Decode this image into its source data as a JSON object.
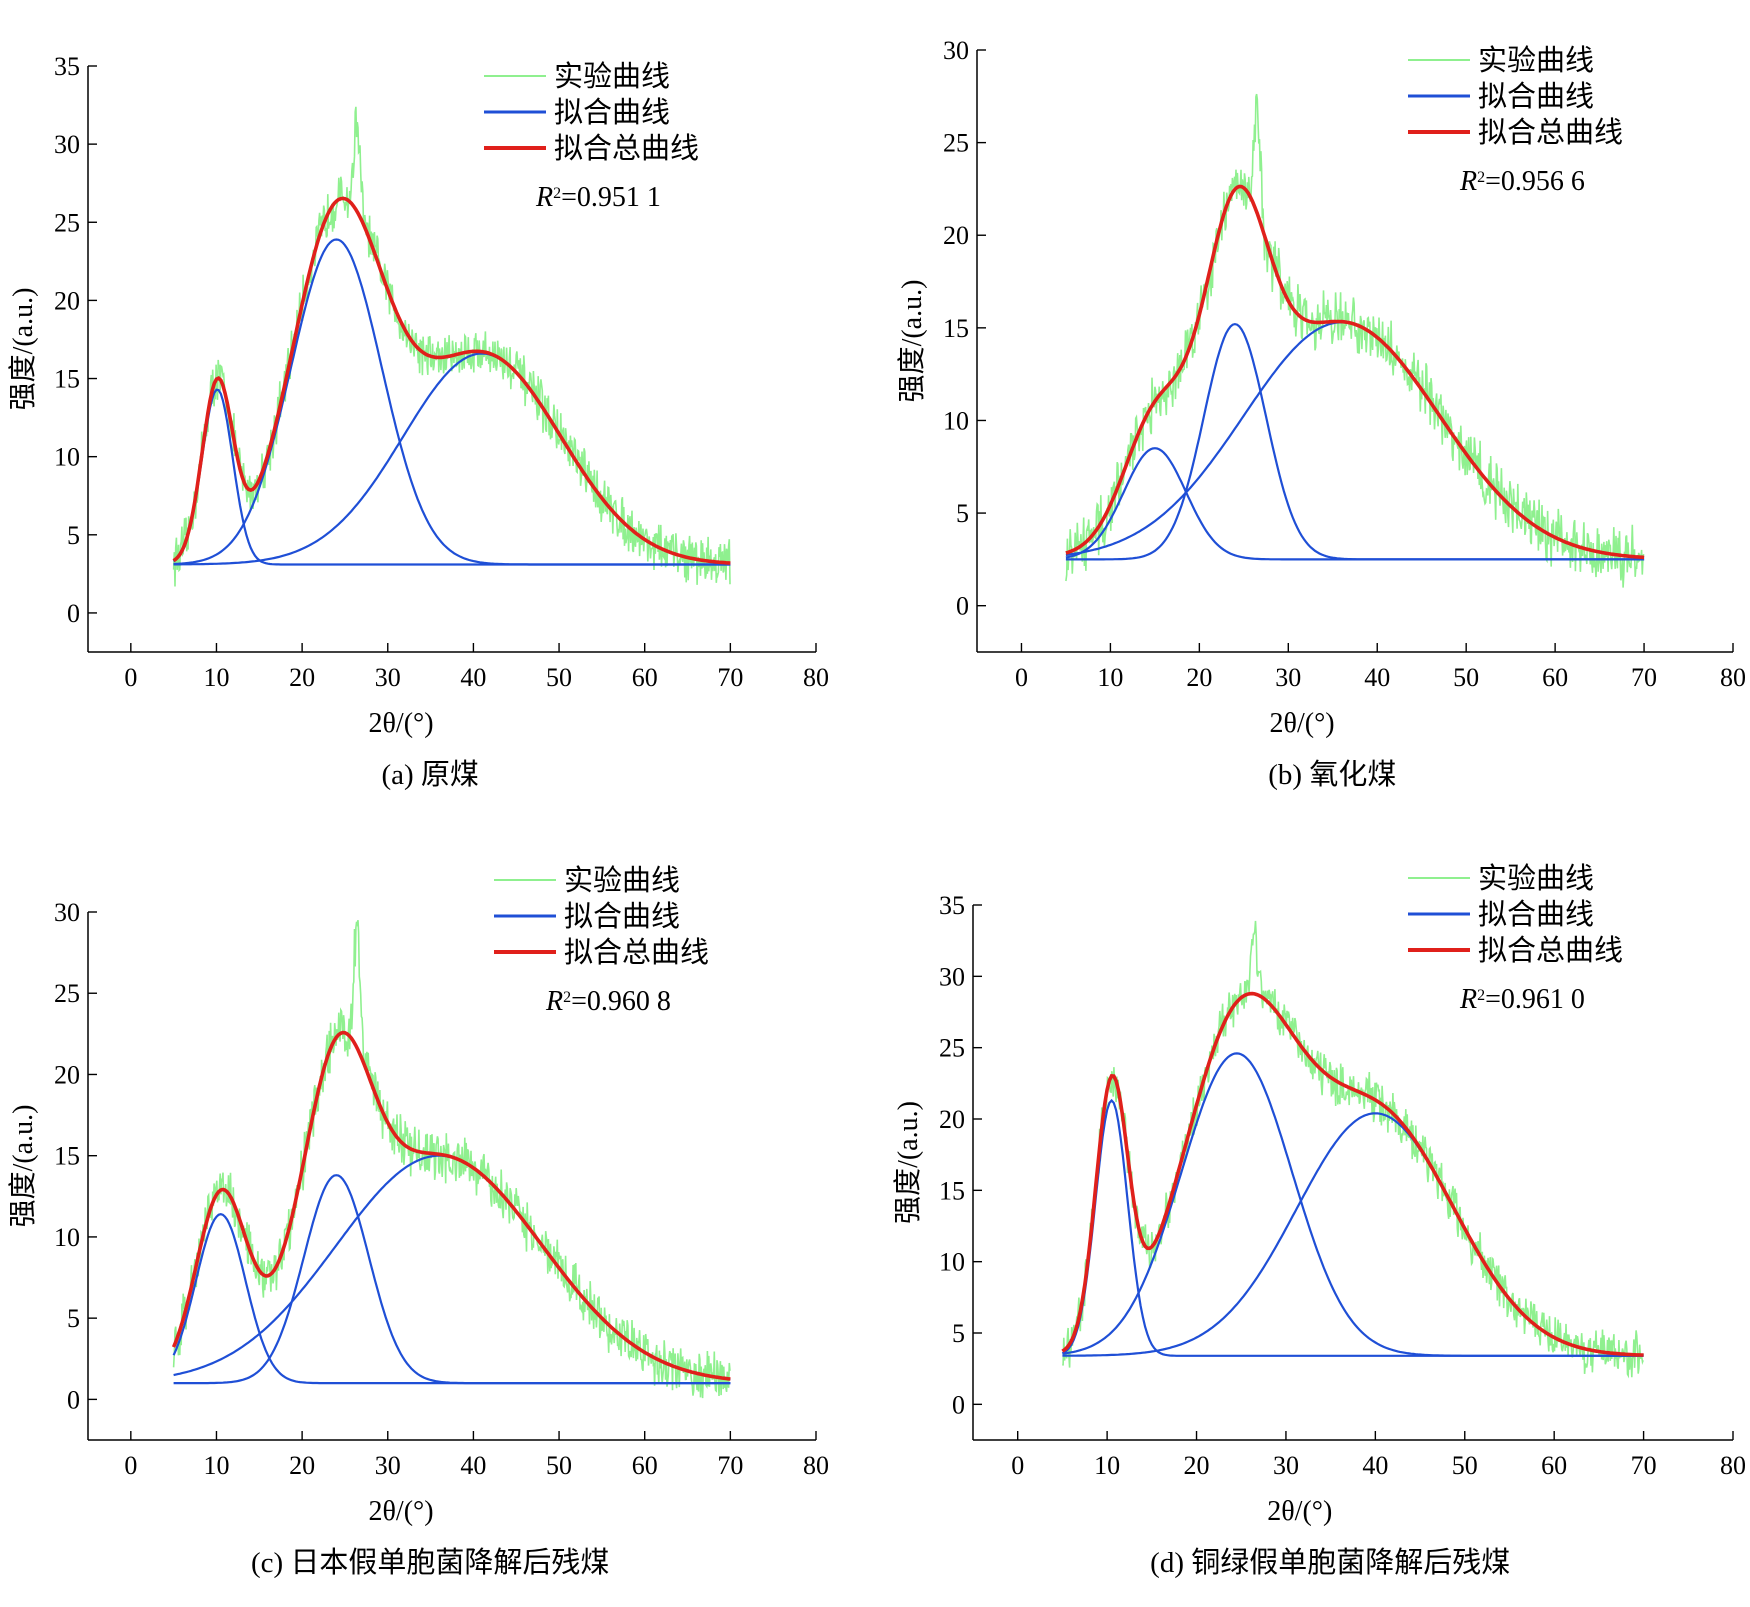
{
  "legend": {
    "experimental": "实验曲线",
    "fit": "拟合曲线",
    "total": "拟合总曲线"
  },
  "colors": {
    "experimental": "#8ff08f",
    "fit": "#1f4fd6",
    "total": "#e0201b"
  },
  "chart_data": [
    {
      "type": "line",
      "caption": "(a) 原煤",
      "xlabel": "2θ/(°)",
      "ylabel": "强度/(a.u.)",
      "xlim": [
        -5,
        80
      ],
      "ylim": [
        -2.5,
        35
      ],
      "xticks": [
        0,
        10,
        20,
        30,
        40,
        50,
        60,
        70,
        80
      ],
      "yticks": [
        0,
        5,
        10,
        15,
        20,
        25,
        30,
        35
      ],
      "r2_symbol": "R",
      "r2_sup": "2",
      "r2_value": "=0.951 1",
      "baseline": 3.1,
      "x_range": [
        5,
        70
      ],
      "peaks": [
        {
          "center": 10.1,
          "height": 11.2,
          "sigma": 1.8
        },
        {
          "center": 24,
          "height": 20.8,
          "sigma": 5.3
        },
        {
          "center": 41,
          "height": 13.5,
          "sigma": 9.2
        }
      ],
      "sharp_peak": {
        "center": 26.4,
        "height": 31.5
      }
    },
    {
      "type": "line",
      "caption": "(b) 氧化煤",
      "xlabel": "2θ/(°)",
      "ylabel": "强度/(a.u.)",
      "xlim": [
        -5,
        80
      ],
      "ylim": [
        -2.5,
        30
      ],
      "xticks": [
        0,
        10,
        20,
        30,
        40,
        50,
        60,
        70,
        80
      ],
      "yticks": [
        0,
        5,
        10,
        15,
        20,
        25,
        30
      ],
      "r2_symbol": "R",
      "r2_sup": "2",
      "r2_value": "=0.956 6",
      "baseline": 2.5,
      "x_range": [
        5,
        70
      ],
      "peaks": [
        {
          "center": 15,
          "height": 6.0,
          "sigma": 3.5
        },
        {
          "center": 24,
          "height": 12.7,
          "sigma": 3.5
        },
        {
          "center": 36,
          "height": 12.8,
          "sigma": 11
        }
      ],
      "sharp_peak": {
        "center": 26.5,
        "height": 27
      }
    },
    {
      "type": "line",
      "caption": "(c) 日本假单胞菌降解后残煤",
      "xlabel": "2θ/(°)",
      "ylabel": "强度/(a.u.)",
      "xlim": [
        -5,
        80
      ],
      "ylim": [
        -2.5,
        30
      ],
      "xticks": [
        0,
        10,
        20,
        30,
        40,
        50,
        60,
        70,
        80
      ],
      "yticks": [
        0,
        5,
        10,
        15,
        20,
        25,
        30
      ],
      "r2_symbol": "R",
      "r2_sup": "2",
      "r2_value": "=0.960 8",
      "baseline": 1.0,
      "x_range": [
        5,
        70
      ],
      "peaks": [
        {
          "center": 10.5,
          "height": 10.4,
          "sigma": 2.9
        },
        {
          "center": 24,
          "height": 12.8,
          "sigma": 3.8
        },
        {
          "center": 36,
          "height": 14.0,
          "sigma": 12
        }
      ],
      "sharp_peak": {
        "center": 26.4,
        "height": 29.3
      }
    },
    {
      "type": "line",
      "caption": "(d) 铜绿假单胞菌降解后残煤",
      "xlabel": "2θ/(°)",
      "ylabel": "强度/(a.u.)",
      "xlim": [
        -5,
        80
      ],
      "ylim": [
        -2.5,
        35
      ],
      "xticks": [
        0,
        10,
        20,
        30,
        40,
        50,
        60,
        70,
        80
      ],
      "yticks": [
        0,
        5,
        10,
        15,
        20,
        25,
        30,
        35
      ],
      "r2_symbol": "R",
      "r2_sup": "2",
      "r2_value": "=0.961 0",
      "baseline": 3.4,
      "x_range": [
        5,
        70
      ],
      "peaks": [
        {
          "center": 10.5,
          "height": 17.9,
          "sigma": 1.8
        },
        {
          "center": 24.5,
          "height": 21.2,
          "sigma": 6.2
        },
        {
          "center": 40,
          "height": 17.0,
          "sigma": 8.8
        }
      ],
      "sharp_peak": {
        "center": 26.4,
        "height": 33.5
      }
    }
  ]
}
